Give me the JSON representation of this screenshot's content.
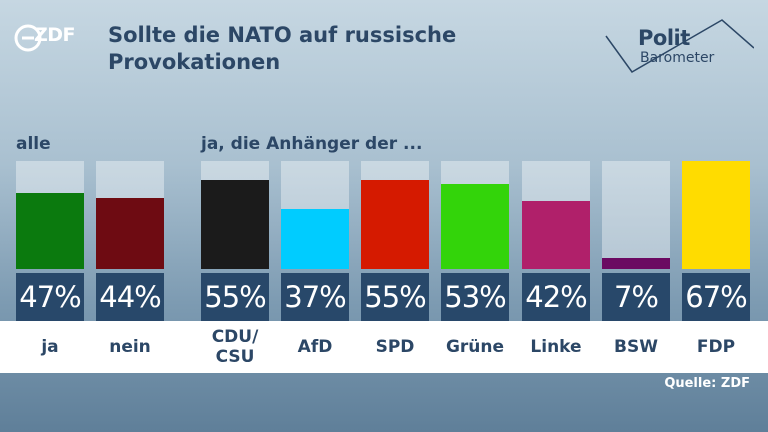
{
  "header": {
    "brand": "ZDF",
    "title": "Sollte die NATO auf russische Provokationen",
    "barometer_word1": "Polit",
    "barometer_word2": "Barometer"
  },
  "groups": {
    "all_label": "alle",
    "supporters_label": "ja, die Anhänger der ..."
  },
  "chart_data": {
    "type": "bar",
    "title": "Sollte die NATO auf russische Provokationen",
    "ylim": [
      0,
      67
    ],
    "categories": [
      "ja",
      "nein",
      "CDU/\nCSU",
      "AfD",
      "SPD",
      "Grüne",
      "Linke",
      "BSW",
      "FDP"
    ],
    "values": [
      47,
      44,
      55,
      37,
      55,
      53,
      42,
      7,
      67
    ],
    "labels": [
      "47%",
      "44%",
      "55%",
      "37%",
      "55%",
      "53%",
      "42%",
      "7%",
      "67%"
    ],
    "colors": [
      "#0b7a0e",
      "#6e0b12",
      "#1b1b1b",
      "#00ccff",
      "#d51a00",
      "#33d40a",
      "#b0206a",
      "#6b0a62",
      "#ffdc00"
    ]
  },
  "source": "Quelle: ZDF"
}
